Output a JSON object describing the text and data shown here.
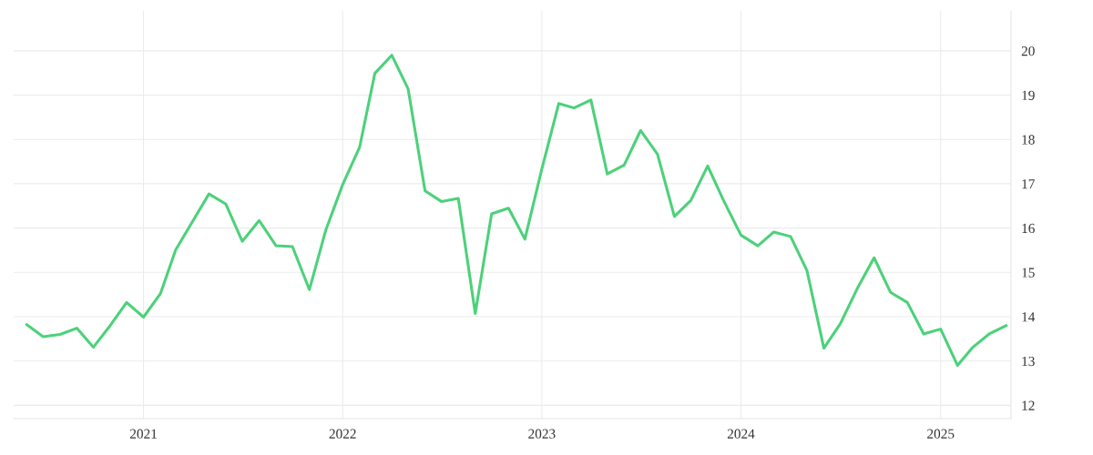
{
  "chart_data": {
    "type": "line",
    "x": [
      "2020-06",
      "2020-07",
      "2020-08",
      "2020-09",
      "2020-10",
      "2020-11",
      "2020-12",
      "2021-01",
      "2021-02",
      "2021-03",
      "2021-04",
      "2021-05",
      "2021-06",
      "2021-07",
      "2021-08",
      "2021-09",
      "2021-10",
      "2021-11",
      "2021-12",
      "2022-01",
      "2022-02",
      "2022-03",
      "2022-04",
      "2022-05",
      "2022-06",
      "2022-07",
      "2022-08",
      "2022-09",
      "2022-10",
      "2022-11",
      "2022-12",
      "2023-01",
      "2023-02",
      "2023-03",
      "2023-04",
      "2023-05",
      "2023-06",
      "2023-07",
      "2023-08",
      "2023-09",
      "2023-10",
      "2023-11",
      "2023-12",
      "2024-01",
      "2024-02",
      "2024-03",
      "2024-04",
      "2024-05",
      "2024-06",
      "2024-07",
      "2024-08",
      "2024-09",
      "2024-10",
      "2024-11",
      "2024-12",
      "2025-01",
      "2025-02",
      "2025-03",
      "2025-04",
      "2025-05"
    ],
    "series": [
      {
        "color": "#4cd17a",
        "values": [
          13.82,
          13.55,
          13.6,
          13.74,
          13.31,
          13.8,
          14.32,
          13.99,
          14.52,
          15.51,
          16.15,
          16.77,
          16.54,
          15.7,
          16.17,
          15.6,
          15.58,
          14.61,
          15.95,
          16.98,
          17.82,
          19.49,
          19.9,
          19.14,
          16.84,
          16.6,
          16.67,
          14.07,
          16.32,
          16.45,
          15.75,
          17.33,
          18.81,
          18.71,
          18.89,
          17.22,
          17.42,
          18.2,
          17.67,
          16.26,
          16.62,
          17.4,
          16.6,
          15.84,
          15.6,
          15.91,
          15.81,
          15.04,
          13.29,
          13.84,
          14.63,
          15.33,
          14.55,
          14.32,
          13.61,
          13.72,
          12.9,
          13.31,
          13.62,
          13.8
        ]
      }
    ],
    "xlim": [
      "2020-05-08",
      "2025-05-10"
    ],
    "xticks": [
      {
        "value": "2021-01-01",
        "label": "2021"
      },
      {
        "value": "2022-01-01",
        "label": "2022"
      },
      {
        "value": "2023-01-01",
        "label": "2023"
      },
      {
        "value": "2024-01-01",
        "label": "2024"
      },
      {
        "value": "2025-01-01",
        "label": "2025"
      }
    ],
    "ylim": [
      11.7,
      20.9
    ],
    "yticks": [
      12,
      13,
      14,
      15,
      16,
      17,
      18,
      19,
      20
    ],
    "grid": true,
    "legend": false,
    "marker": "none",
    "line_style": "solid"
  }
}
